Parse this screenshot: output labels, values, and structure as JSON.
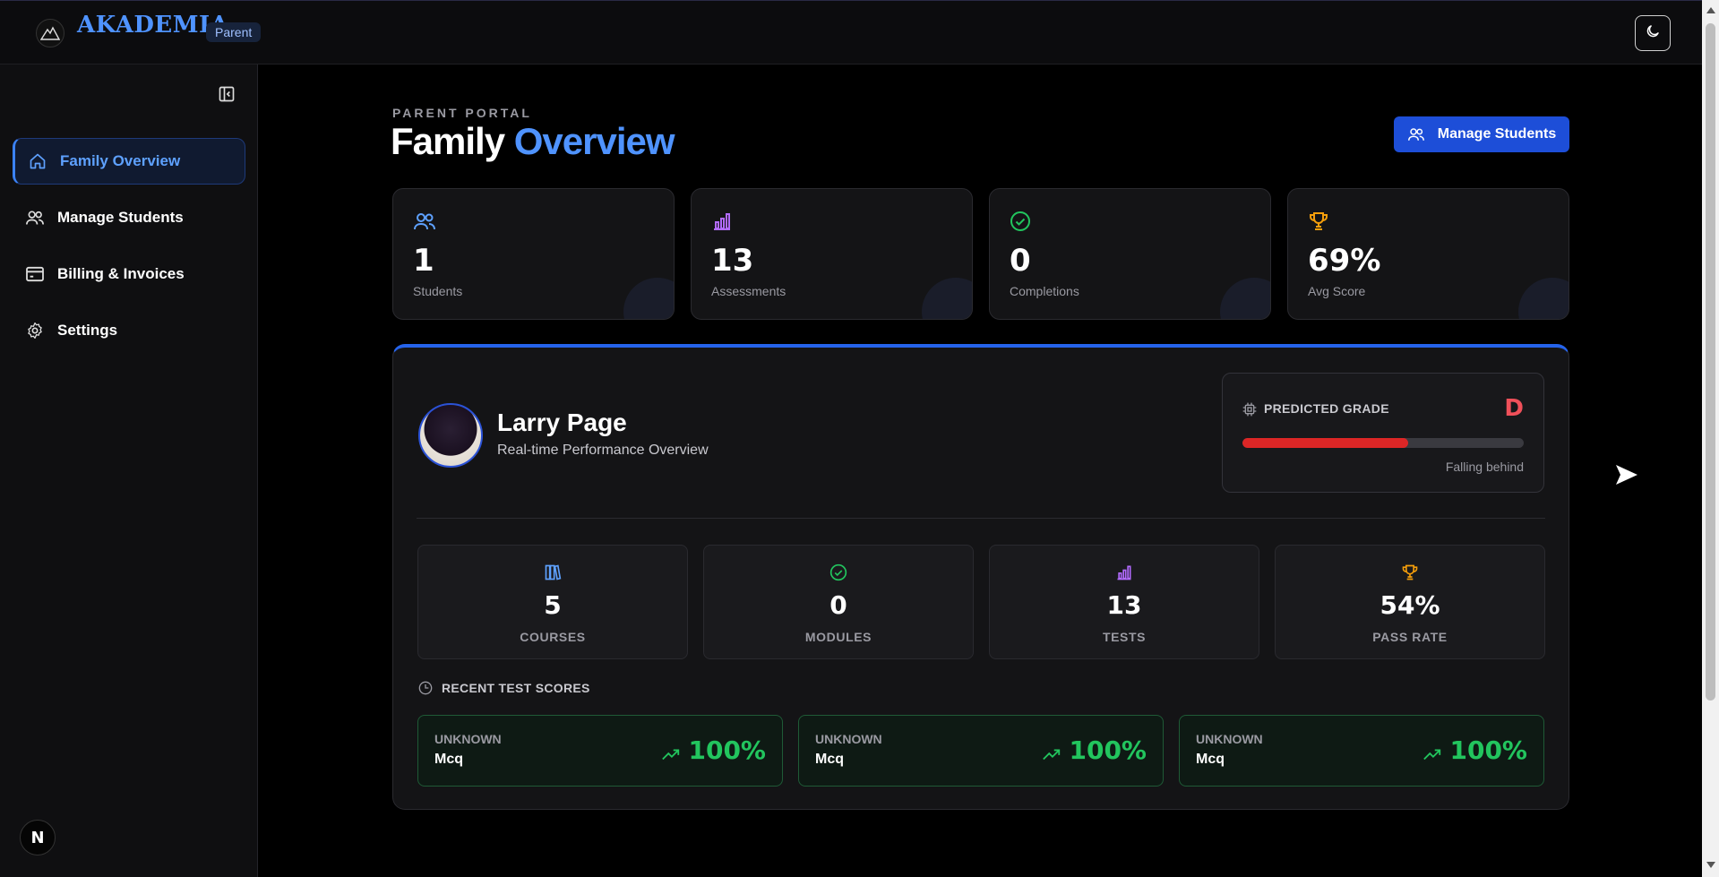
{
  "header": {
    "brand": "AKADEMIA",
    "role_badge": "Parent"
  },
  "sidebar": {
    "items": [
      {
        "label": "Family Overview",
        "icon": "home-icon",
        "active": true
      },
      {
        "label": "Manage Students",
        "icon": "users-icon",
        "active": false
      },
      {
        "label": "Billing & Invoices",
        "icon": "credit-card-icon",
        "active": false
      },
      {
        "label": "Settings",
        "icon": "gear-icon",
        "active": false
      }
    ],
    "footer_badge": "N"
  },
  "page": {
    "eyebrow": "PARENT PORTAL",
    "title_part1": "Family",
    "title_part2": "Overview",
    "manage_button": "Manage Students"
  },
  "stats": [
    {
      "value": "1",
      "label": "Students",
      "icon": "users-icon",
      "color": "#5ea1ff"
    },
    {
      "value": "13",
      "label": "Assessments",
      "icon": "bar-chart-icon",
      "color": "#b26bff"
    },
    {
      "value": "0",
      "label": "Completions",
      "icon": "check-circle-icon",
      "color": "#22c55e"
    },
    {
      "value": "69%",
      "label": "Avg Score",
      "icon": "trophy-icon",
      "color": "#f59e0b"
    }
  ],
  "student": {
    "name": "Larry Page",
    "subtitle": "Real-time Performance Overview",
    "predicted": {
      "label": "PREDICTED GRADE",
      "grade": "D",
      "progress": 0.59,
      "status": "Falling behind"
    },
    "metrics": [
      {
        "value": "5",
        "label": "COURSES",
        "icon": "books-icon",
        "color": "#5ea1ff"
      },
      {
        "value": "0",
        "label": "MODULES",
        "icon": "check-circle-icon",
        "color": "#22c55e"
      },
      {
        "value": "13",
        "label": "TESTS",
        "icon": "bar-chart-icon",
        "color": "#b26bff"
      },
      {
        "value": "54%",
        "label": "PASS RATE",
        "icon": "trophy-icon",
        "color": "#f59e0b"
      }
    ],
    "recent_heading": "RECENT TEST SCORES",
    "recent_scores": [
      {
        "subject": "UNKNOWN",
        "type": "Mcq",
        "score": "100%"
      },
      {
        "subject": "UNKNOWN",
        "type": "Mcq",
        "score": "100%"
      },
      {
        "subject": "UNKNOWN",
        "type": "Mcq",
        "score": "100%"
      }
    ]
  },
  "colors": {
    "accent": "#4f93ff",
    "primary_button": "#1d4ed8",
    "success": "#22c55e",
    "danger": "#dc2626"
  }
}
